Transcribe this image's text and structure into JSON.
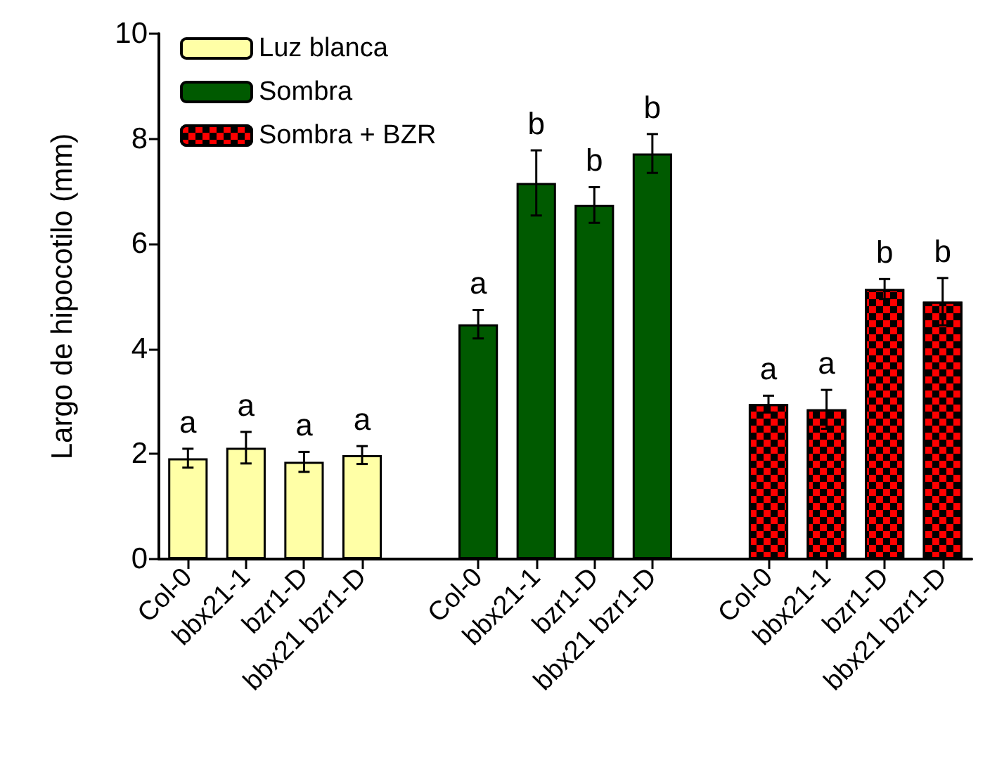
{
  "chart_data": {
    "type": "bar",
    "ylabel": "Largo de hipocotilo (mm)",
    "categories": [
      "Col-0",
      "bbx21-1",
      "bzr1-D",
      "bbx21 bzr1-D",
      null,
      "Col-0",
      "bbx21-1",
      "bzr1-D",
      "bbx21 bzr1-D",
      null,
      "Col-0",
      "bbx21-1",
      "bzr1-D",
      "bbx21 bzr1-D"
    ],
    "series": [
      {
        "name": "Luz blanca",
        "color": "#ffffa6",
        "values": [
          1.92,
          2.12,
          1.85,
          1.98,
          null,
          null,
          null,
          null,
          null,
          null,
          null,
          null,
          null,
          null
        ],
        "errors": [
          0.18,
          0.3,
          0.19,
          0.17,
          null,
          null,
          null,
          null,
          null,
          null,
          null,
          null,
          null,
          null
        ],
        "value_labels": [
          "a",
          "a",
          "a",
          "a",
          null,
          null,
          null,
          null,
          null,
          null,
          null,
          null,
          null,
          null
        ]
      },
      {
        "name": "Sombra",
        "color": "#005a00",
        "values": [
          null,
          null,
          null,
          null,
          null,
          4.47,
          7.16,
          6.74,
          7.72,
          null,
          null,
          null,
          null,
          null
        ],
        "errors": [
          null,
          null,
          null,
          null,
          null,
          0.27,
          0.62,
          0.34,
          0.37,
          null,
          null,
          null,
          null,
          null
        ],
        "value_labels": [
          null,
          null,
          null,
          null,
          null,
          "a",
          "b",
          "b",
          "b",
          null,
          null,
          null,
          null,
          null
        ]
      },
      {
        "name": "Sombra + BZR",
        "color": "#ff0000",
        "values": [
          null,
          null,
          null,
          null,
          null,
          null,
          null,
          null,
          null,
          null,
          2.95,
          2.85,
          5.14,
          4.9
        ],
        "errors": [
          null,
          null,
          null,
          null,
          null,
          null,
          null,
          null,
          null,
          null,
          0.16,
          0.37,
          0.19,
          0.45
        ],
        "value_labels": [
          null,
          null,
          null,
          null,
          null,
          null,
          null,
          null,
          null,
          null,
          "a",
          "a",
          "b",
          "b"
        ]
      }
    ],
    "ylim": [
      0,
      10
    ],
    "yticks": [
      0,
      2,
      4,
      6,
      8,
      10
    ],
    "grid": false,
    "legend": "top left"
  }
}
